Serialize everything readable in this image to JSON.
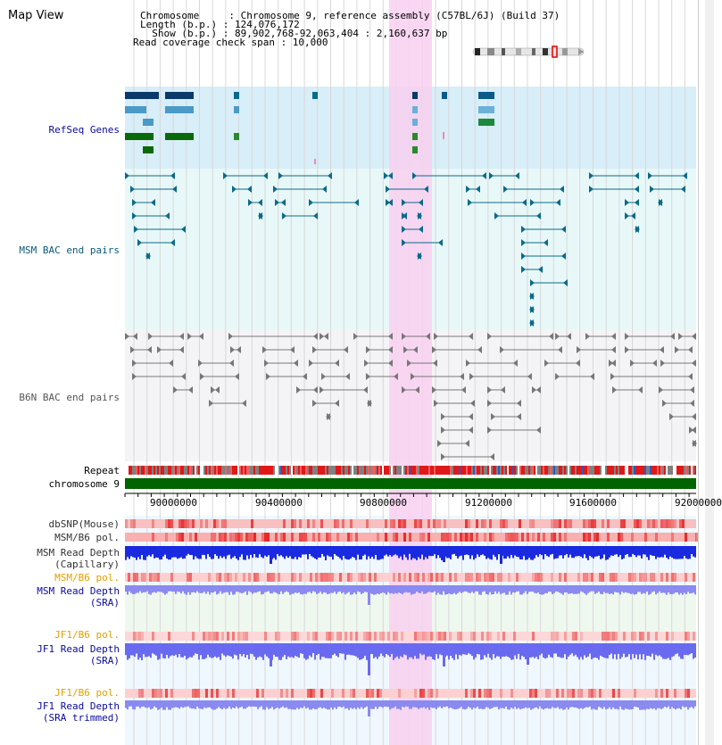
{
  "header": {
    "title": "Map View",
    "chromosome_line": "Chromosome     : Chromosome 9, reference assembly (C57BL/6J) (Build 37)",
    "length_line": "Length (b.p.) : 124,076,172",
    "show_line": "  Show (b.p.) : 89,902,768-92,063,404 : 2,160,637 bp",
    "coverage_line": "Read coverage check span : 10,000"
  },
  "tracks": {
    "refseq": "RefSeq Genes",
    "msm_bac": "MSM BAC end pairs",
    "b6n_bac": "B6N BAC end pairs",
    "repeat": "Repeat",
    "chromosome": "chromosome 9",
    "dbsnp": "dbSNP(Mouse)",
    "msm_b6_pol": "MSM/B6 pol.",
    "msm_depth_cap_1": "MSM Read Depth",
    "msm_depth_cap_2": "(Capillary)",
    "msm_b6_pol_2": "MSM/B6 pol.",
    "msm_depth_sra_1": "MSM Read Depth",
    "msm_depth_sra_2": "(SRA)",
    "jf1_b6_pol": "JF1/B6 pol.",
    "jf1_depth_sra_1": "JF1 Read Depth",
    "jf1_depth_sra_2": "(SRA)",
    "jf1_b6_pol_2": "JF1/B6 pol.",
    "jf1_depth_trim_1": "JF1 Read Depth",
    "jf1_depth_trim_2": "(SRA trimmed)"
  },
  "axis": {
    "ticks": [
      "90000000",
      "90400000",
      "90800000",
      "91200000",
      "91600000",
      "92000000"
    ]
  },
  "colors": {
    "refseq_label": "#0a0a9a",
    "msm_label": "#0a5a7a",
    "b6n_label": "#555555",
    "pol_label_orange": "#e0a000",
    "depth_label_blue": "#0a0aa0",
    "highlight": "#f8d0f0",
    "chromosome_bar": "#006400"
  }
}
